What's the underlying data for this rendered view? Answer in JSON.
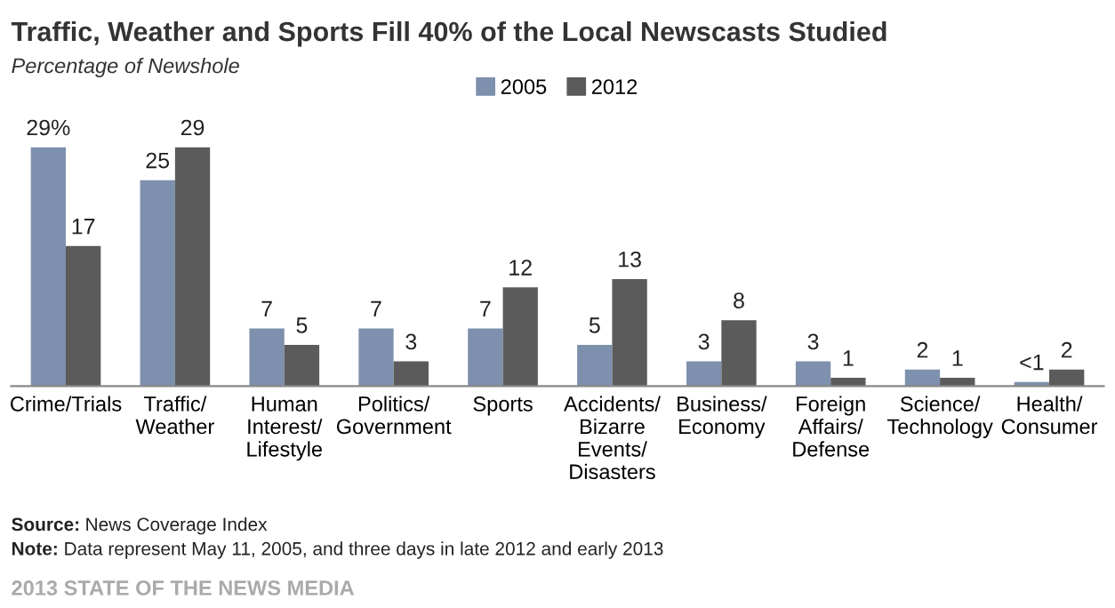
{
  "chart_data": {
    "type": "bar",
    "title": "Traffic, Weather and Sports Fill 40% of the Local Newscasts Studied",
    "subtitle": "Percentage of Newshole",
    "categories": [
      "Crime/Trials",
      "Traffic/\nWeather",
      "Human\nInterest/\nLifestyle",
      "Politics/\nGovernment",
      "Sports",
      "Accidents/\nBizarre\nEvents/\nDisasters",
      "Business/\nEconomy",
      "Foreign\nAffairs/\nDefense",
      "Science/\nTechnology",
      "Health/\nConsumer"
    ],
    "series": [
      {
        "name": "2005",
        "color": "#7d90ad",
        "values": [
          29,
          25,
          7,
          7,
          7,
          5,
          3,
          3,
          2,
          0.5
        ],
        "value_labels": [
          "29%",
          "25",
          "7",
          "7",
          "7",
          "5",
          "3",
          "3",
          "2",
          "<1"
        ]
      },
      {
        "name": "2012",
        "color": "#5b5b5b",
        "values": [
          17,
          29,
          5,
          3,
          12,
          13,
          8,
          1,
          1,
          2
        ],
        "value_labels": [
          "17",
          "29",
          "5",
          "3",
          "12",
          "13",
          "8",
          "1",
          "1",
          "2"
        ]
      }
    ],
    "legend": "top",
    "grid": false,
    "annotations": [
      "Source: News Coverage Index",
      "Note: Data represent May 11, 2005, and three days in late 2012 and early 2013",
      "2013 STATE OF THE NEWS MEDIA"
    ]
  }
}
